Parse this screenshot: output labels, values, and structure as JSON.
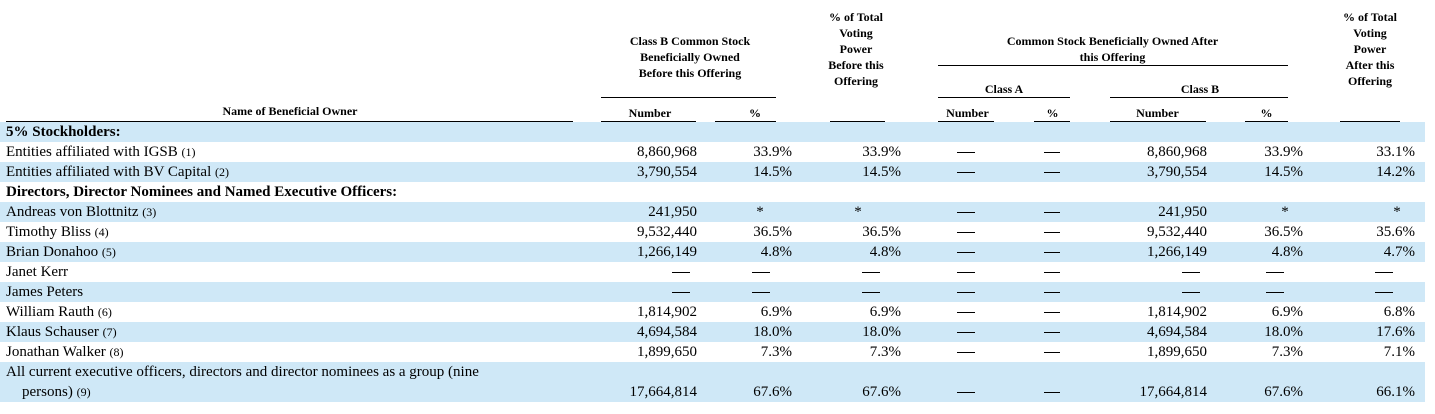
{
  "headers": {
    "name_col": "Name of Beneficial Owner",
    "class_b_before": "Class B Common Stock Beneficially Owned Before this Offering",
    "pct_voting_before": "% of Total Voting Power Before this Offering",
    "common_after": "Common Stock Beneficially Owned After this Offering",
    "class_a": "Class A",
    "class_b": "Class B",
    "pct_voting_after": "% of Total Voting Power After this Offering",
    "number": "Number",
    "pct": "%",
    "offering": "Offering"
  },
  "rows": [
    {
      "type": "section",
      "name": "5% Stockholders:"
    },
    {
      "type": "data",
      "name": "Entities affiliated with IGSB",
      "note": "(1)",
      "b_before_num": "8,860,968",
      "b_before_pct": "33.9%",
      "vote_before": "33.9%",
      "a_after_num": "—",
      "a_after_pct": "—",
      "b_after_num": "8,860,968",
      "b_after_pct": "33.9%",
      "vote_after": "33.1%"
    },
    {
      "type": "data",
      "name": "Entities affiliated with BV Capital",
      "note": "(2)",
      "b_before_num": "3,790,554",
      "b_before_pct": "14.5%",
      "vote_before": "14.5%",
      "a_after_num": "—",
      "a_after_pct": "—",
      "b_after_num": "3,790,554",
      "b_after_pct": "14.5%",
      "vote_after": "14.2%"
    },
    {
      "type": "section",
      "name": "Directors, Director Nominees and Named Executive Officers:"
    },
    {
      "type": "data",
      "name": "Andreas von Blottnitz",
      "note": "(3)",
      "b_before_num": "241,950",
      "b_before_pct": "*",
      "vote_before": "*",
      "a_after_num": "—",
      "a_after_pct": "—",
      "b_after_num": "241,950",
      "b_after_pct": "*",
      "vote_after": "*"
    },
    {
      "type": "data",
      "name": "Timothy Bliss",
      "note": "(4)",
      "b_before_num": "9,532,440",
      "b_before_pct": "36.5%",
      "vote_before": "36.5%",
      "a_after_num": "—",
      "a_after_pct": "—",
      "b_after_num": "9,532,440",
      "b_after_pct": "36.5%",
      "vote_after": "35.6%"
    },
    {
      "type": "data",
      "name": "Brian Donahoo",
      "note": "(5)",
      "b_before_num": "1,266,149",
      "b_before_pct": "4.8%",
      "vote_before": "4.8%",
      "a_after_num": "—",
      "a_after_pct": "—",
      "b_after_num": "1,266,149",
      "b_after_pct": "4.8%",
      "vote_after": "4.7%"
    },
    {
      "type": "data",
      "name": "Janet Kerr",
      "note": "",
      "b_before_num": "—",
      "b_before_pct": "—",
      "vote_before": "—",
      "a_after_num": "—",
      "a_after_pct": "—",
      "b_after_num": "—",
      "b_after_pct": "—",
      "vote_after": "—"
    },
    {
      "type": "data",
      "name": "James Peters",
      "note": "",
      "b_before_num": "—",
      "b_before_pct": "—",
      "vote_before": "—",
      "a_after_num": "—",
      "a_after_pct": "—",
      "b_after_num": "—",
      "b_after_pct": "—",
      "vote_after": "—"
    },
    {
      "type": "data",
      "name": "William Rauth",
      "note": "(6)",
      "b_before_num": "1,814,902",
      "b_before_pct": "6.9%",
      "vote_before": "6.9%",
      "a_after_num": "—",
      "a_after_pct": "—",
      "b_after_num": "1,814,902",
      "b_after_pct": "6.9%",
      "vote_after": "6.8%"
    },
    {
      "type": "data",
      "name": "Klaus Schauser",
      "note": "(7)",
      "b_before_num": "4,694,584",
      "b_before_pct": "18.0%",
      "vote_before": "18.0%",
      "a_after_num": "—",
      "a_after_pct": "—",
      "b_after_num": "4,694,584",
      "b_after_pct": "18.0%",
      "vote_after": "17.6%"
    },
    {
      "type": "data",
      "name": "Jonathan Walker",
      "note": "(8)",
      "b_before_num": "1,899,650",
      "b_before_pct": "7.3%",
      "vote_before": "7.3%",
      "a_after_num": "—",
      "a_after_pct": "—",
      "b_after_num": "1,899,650",
      "b_after_pct": "7.3%",
      "vote_after": "7.1%"
    },
    {
      "type": "group",
      "name_line1": "All current executive officers, directors and director nominees as a group (nine",
      "name_line2": "persons)",
      "note": "(9)",
      "b_before_num": "17,664,814",
      "b_before_pct": "67.6%",
      "vote_before": "67.6%",
      "a_after_num": "—",
      "a_after_pct": "—",
      "b_after_num": "17,664,814",
      "b_after_pct": "67.6%",
      "vote_after": "66.1%"
    }
  ]
}
